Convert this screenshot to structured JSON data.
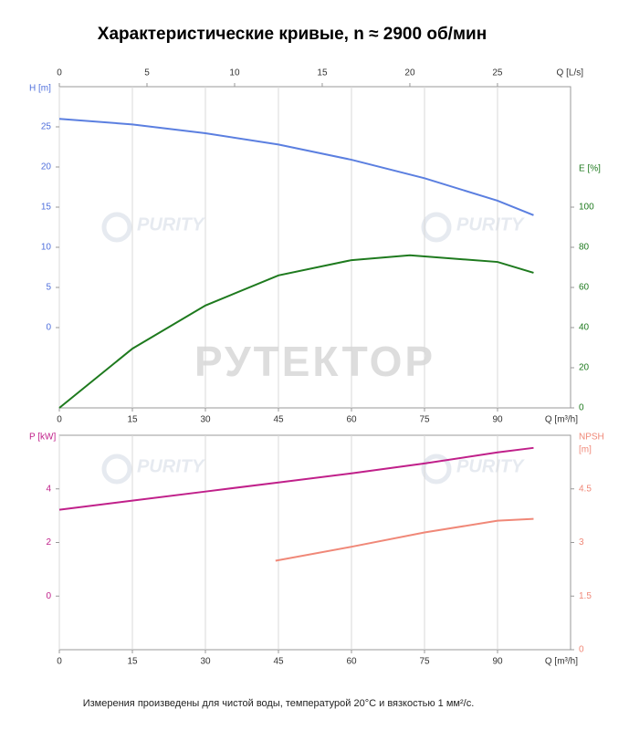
{
  "chart_data": [
    {
      "type": "line",
      "title": "Характеристические кривые, n ≈ 2900 об/мин",
      "watermark": "РУТЕКТОР",
      "logo": "PURITY",
      "xlabel": "Q [m³/h]",
      "xlim": [
        0,
        105
      ],
      "xticks": [
        0,
        15,
        30,
        45,
        60,
        75,
        90
      ],
      "x2label": "Q [L/s]",
      "x2lim": [
        0,
        29.17
      ],
      "x2ticks": [
        0,
        5,
        10,
        15,
        20,
        25
      ],
      "ylabel": "H [m]",
      "ylim": [
        -10,
        30
      ],
      "yticks": [
        0,
        5,
        10,
        15,
        20,
        25
      ],
      "ycolor": "#4f6fdc",
      "y2label": "E [%]",
      "y2lim": [
        0,
        160
      ],
      "y2ticks": [
        0,
        20,
        40,
        60,
        80,
        100
      ],
      "y2color": "#1e7a1e",
      "grid": true,
      "series": [
        {
          "color": "#5b7fe0",
          "x": [
            0,
            15,
            30,
            45,
            60,
            75,
            90,
            97.4
          ],
          "values": [
            26,
            25.3,
            24.2,
            22.8,
            20.9,
            18.6,
            15.8,
            14.0
          ]
        },
        {
          "color": "#1e7a1e",
          "axis": "y2",
          "x": [
            0,
            15,
            30,
            45,
            60,
            72,
            90,
            97.4
          ],
          "values": [
            0,
            29.5,
            51,
            66,
            73.6,
            76,
            72.7,
            67.3
          ]
        }
      ]
    },
    {
      "type": "line",
      "note": "Измерения произведены для чистой воды, температурой 20°C и вязкостью 1 мм²/с.",
      "xlabel": "Q [m³/h]",
      "xlim": [
        0,
        105
      ],
      "xticks": [
        0,
        15,
        30,
        45,
        60,
        75,
        90
      ],
      "ylabel": "P [kW]",
      "ylim": [
        -2,
        6
      ],
      "yticks": [
        0,
        2,
        4
      ],
      "ycolor": "#c0208a",
      "y2label": [
        "NPSH",
        "[m]"
      ],
      "y2lim": [
        0,
        6
      ],
      "y2ticks": [
        0,
        1.5,
        3,
        4.5
      ],
      "y2color": "#f08878",
      "grid": true,
      "series": [
        {
          "color": "#c0208a",
          "x": [
            0,
            15,
            30,
            45,
            60,
            75,
            90,
            97.4
          ],
          "values": [
            3.22,
            3.56,
            3.9,
            4.24,
            4.58,
            4.95,
            5.36,
            5.53
          ]
        },
        {
          "color": "#f08878",
          "axis": "y2",
          "x": [
            44.4,
            60,
            75,
            90,
            97.4
          ],
          "values": [
            2.49,
            2.88,
            3.28,
            3.61,
            3.66
          ]
        }
      ]
    }
  ]
}
